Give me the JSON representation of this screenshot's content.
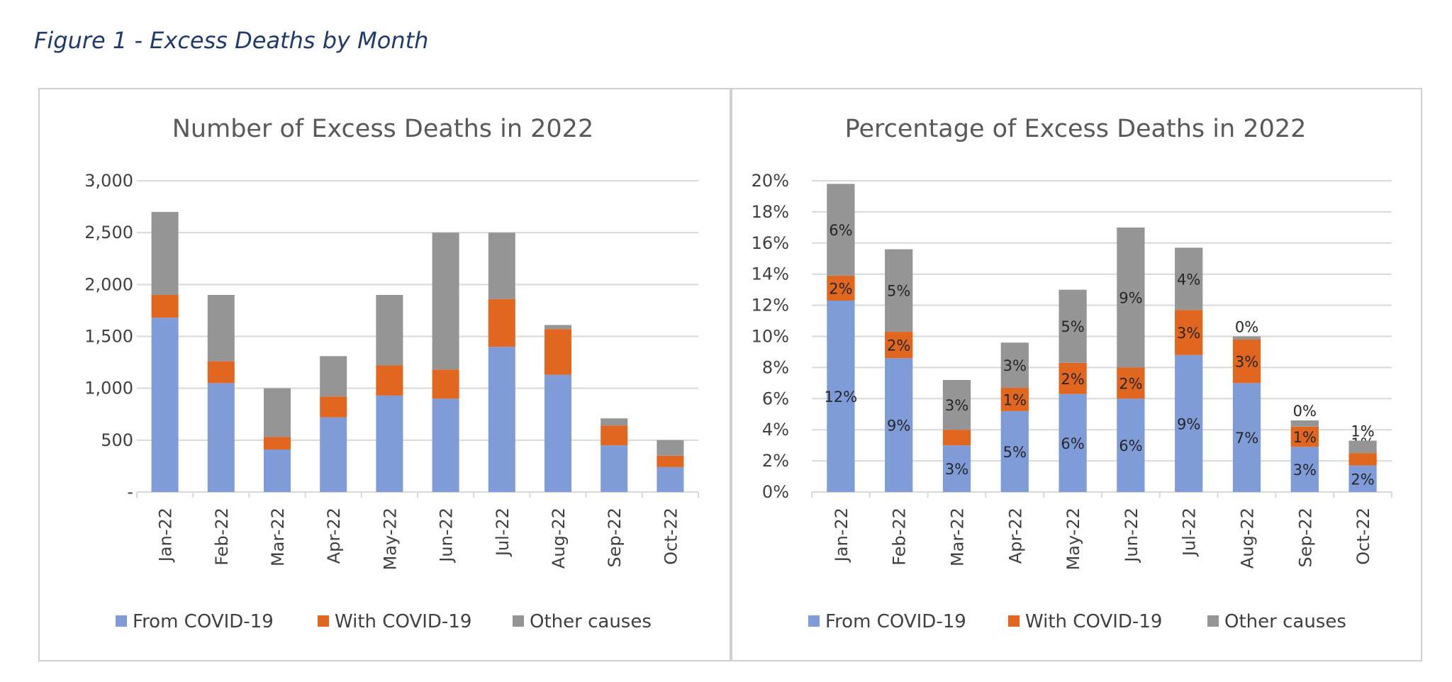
{
  "figure_title": "Figure 1 - Excess Deaths by Month",
  "colors": {
    "from_covid": "#7f9cd9",
    "with_covid": "#e1661f",
    "other": "#959595",
    "grid": "#d9d9d9",
    "frame": "#d0d0d0"
  },
  "chart_data": [
    {
      "type": "bar",
      "stacked": true,
      "title": "Number of Excess Deaths in 2022",
      "categories": [
        "Jan-22",
        "Feb-22",
        "Mar-22",
        "Apr-22",
        "May-22",
        "Jun-22",
        "Jul-22",
        "Aug-22",
        "Sep-22",
        "Oct-22"
      ],
      "series": [
        {
          "name": "From COVID-19",
          "values": [
            1680,
            1050,
            410,
            720,
            930,
            900,
            1400,
            1130,
            450,
            240
          ]
        },
        {
          "name": "With COVID-19",
          "values": [
            220,
            210,
            120,
            200,
            290,
            280,
            460,
            440,
            190,
            110
          ]
        },
        {
          "name": "Other causes",
          "values": [
            800,
            640,
            470,
            390,
            680,
            1320,
            640,
            40,
            70,
            150
          ]
        }
      ],
      "ylim": [
        0,
        3000
      ],
      "yticks": [
        0,
        500,
        1000,
        1500,
        2000,
        2500,
        3000
      ],
      "ytick_labels": [
        "-",
        "500",
        "1,000",
        "1,500",
        "2,000",
        "2,500",
        "3,000"
      ],
      "legend": "bottom",
      "grid": true
    },
    {
      "type": "bar",
      "stacked": true,
      "title": "Percentage of Excess Deaths in 2022",
      "categories": [
        "Jan-22",
        "Feb-22",
        "Mar-22",
        "Apr-22",
        "May-22",
        "Jun-22",
        "Jul-22",
        "Aug-22",
        "Sep-22",
        "Oct-22"
      ],
      "series": [
        {
          "name": "From COVID-19",
          "values": [
            12.3,
            8.6,
            3.0,
            5.2,
            6.3,
            6.0,
            8.8,
            7.0,
            2.9,
            1.7
          ],
          "labels": [
            "12%",
            "9%",
            "3%",
            "5%",
            "6%",
            "6%",
            "9%",
            "7%",
            "3%",
            "2%"
          ]
        },
        {
          "name": "With COVID-19",
          "values": [
            1.6,
            1.7,
            1.0,
            1.5,
            2.0,
            2.0,
            2.9,
            2.8,
            1.3,
            0.8
          ],
          "labels": [
            "2%",
            "2%",
            "1%",
            "1%",
            "2%",
            "2%",
            "3%",
            "3%",
            "1%",
            "1%"
          ]
        },
        {
          "name": "Other causes",
          "values": [
            5.9,
            5.3,
            3.2,
            2.9,
            4.7,
            9.0,
            4.0,
            0.2,
            0.4,
            0.8
          ],
          "labels": [
            "6%",
            "5%",
            "3%",
            "3%",
            "5%",
            "9%",
            "4%",
            "0%",
            "0%",
            "1%"
          ]
        }
      ],
      "ylim": [
        0,
        20
      ],
      "yticks": [
        0,
        2,
        4,
        6,
        8,
        10,
        12,
        14,
        16,
        18,
        20
      ],
      "ytick_labels": [
        "0%",
        "2%",
        "4%",
        "6%",
        "8%",
        "10%",
        "12%",
        "14%",
        "16%",
        "18%",
        "20%"
      ],
      "legend": "bottom",
      "grid": true
    }
  ]
}
